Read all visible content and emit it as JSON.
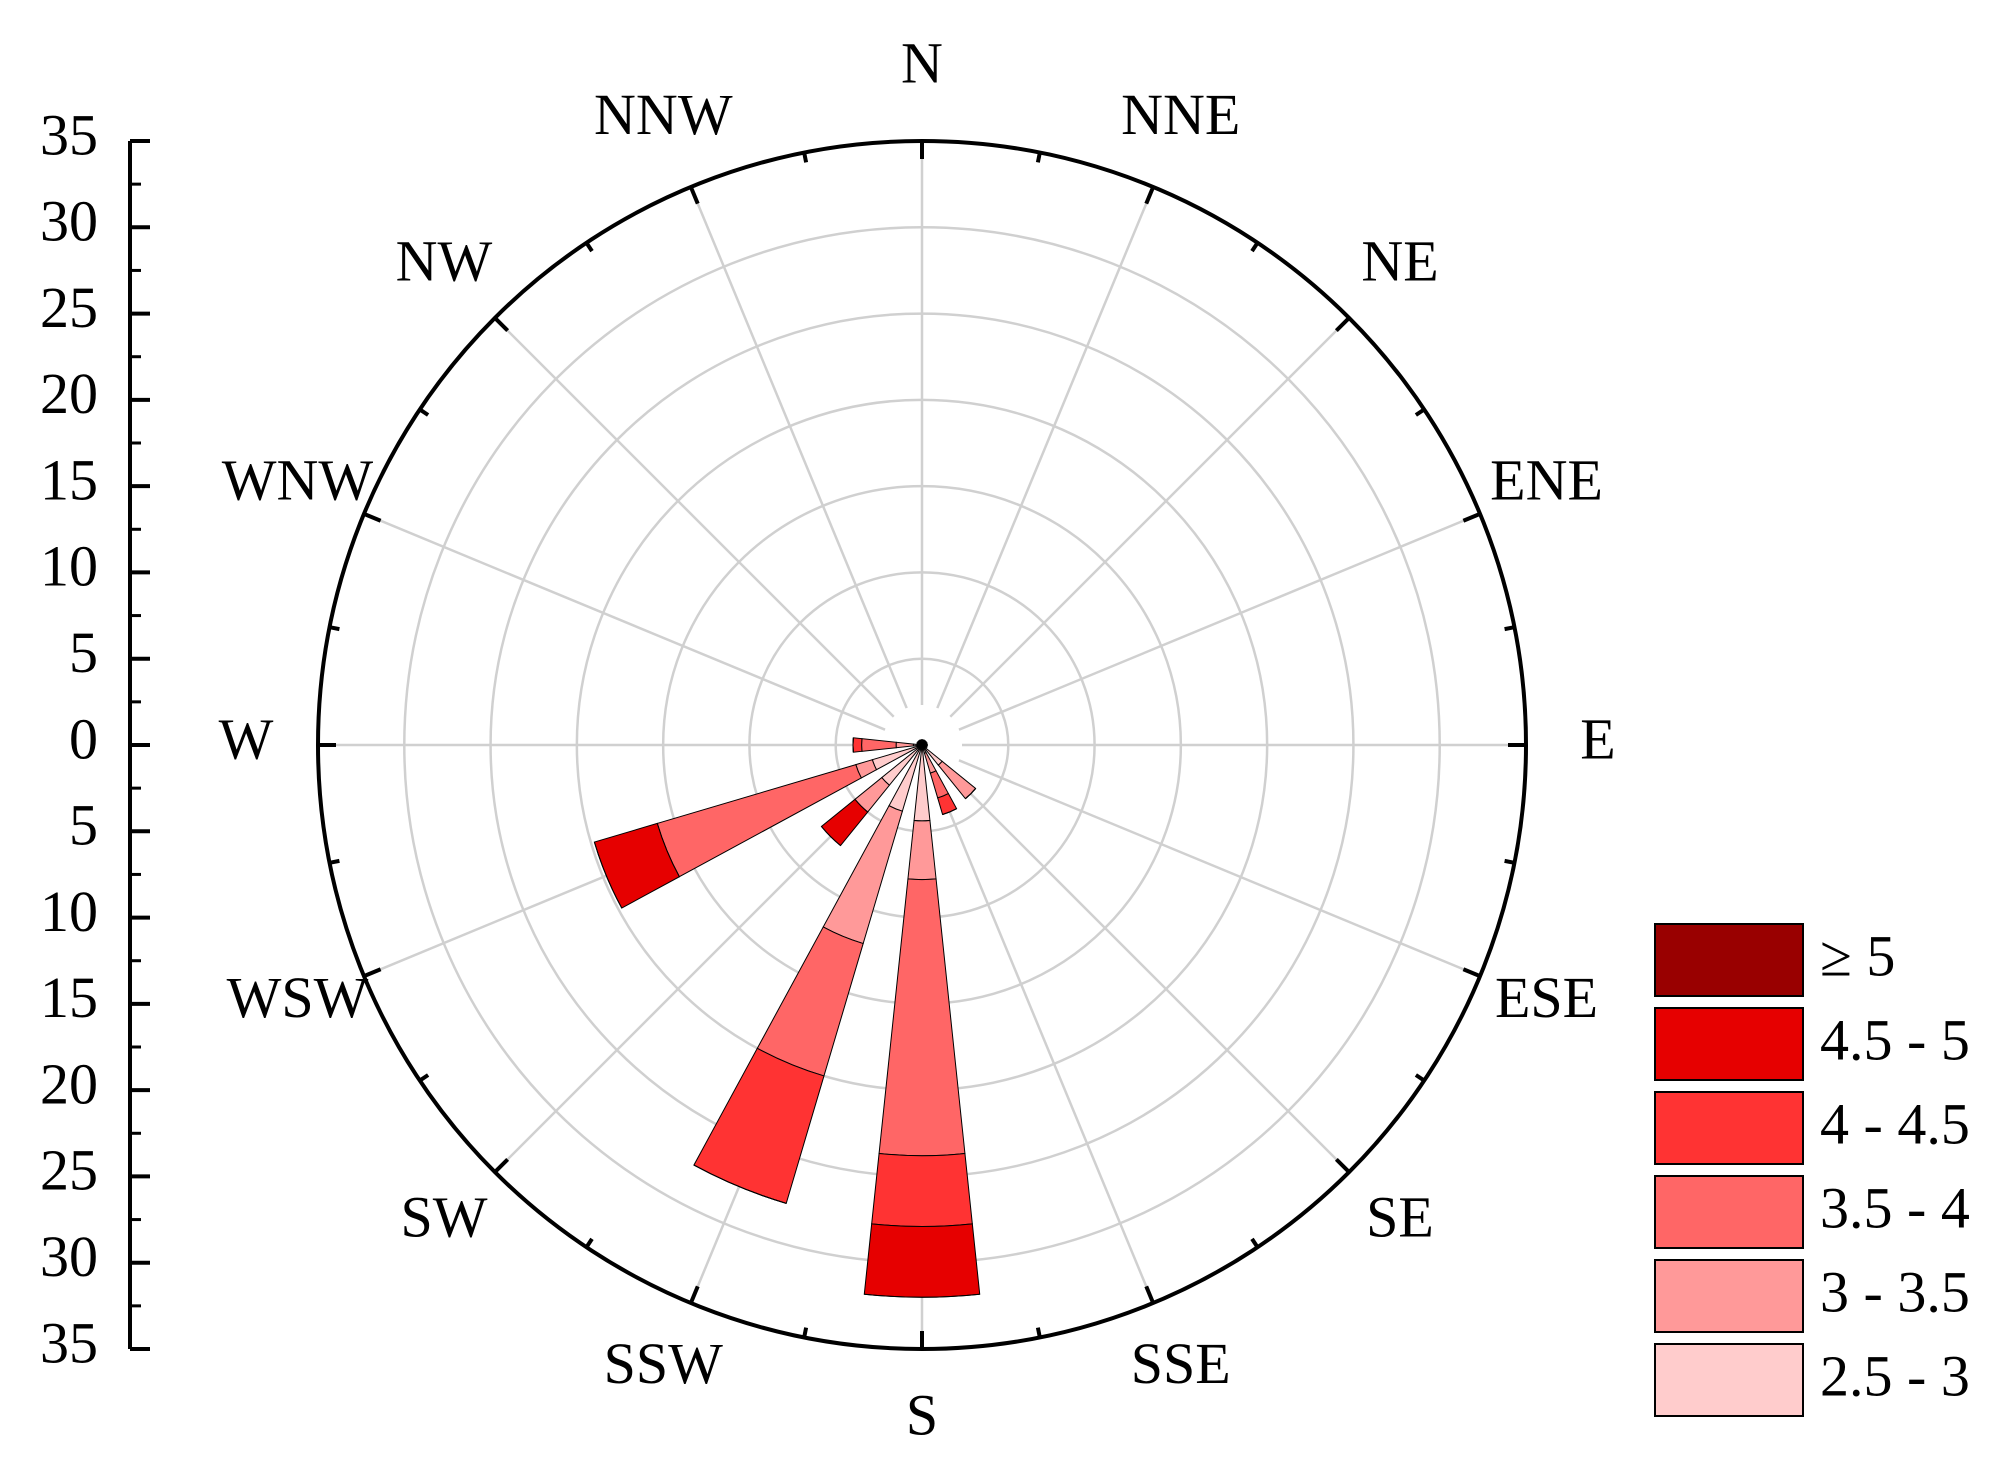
{
  "chart_data": {
    "type": "windrose",
    "directions": [
      "N",
      "NNE",
      "NE",
      "ENE",
      "E",
      "ESE",
      "SE",
      "SSE",
      "S",
      "SSW",
      "SW",
      "WSW",
      "W",
      "WNW",
      "NW",
      "NNW"
    ],
    "series": [
      {
        "name": "≥ 5",
        "color": "#990000",
        "values": [
          0,
          0,
          0,
          0,
          0,
          0,
          0,
          0,
          0,
          0,
          0,
          0,
          0,
          0,
          0,
          0
        ]
      },
      {
        "name": "4.5 - 5",
        "color": "#e60000",
        "values": [
          0,
          0,
          0,
          0,
          0,
          0,
          0,
          0,
          4.1,
          0,
          2.5,
          3.8,
          0,
          0,
          0,
          0
        ]
      },
      {
        "name": "4 - 4.5",
        "color": "#ff3333",
        "values": [
          0,
          0,
          0,
          0,
          0,
          0,
          0,
          1,
          4.1,
          7.7,
          0,
          0,
          0.5,
          0,
          0,
          0
        ]
      },
      {
        "name": "3.5 - 4",
        "color": "#ff6666",
        "values": [
          0,
          0,
          0,
          0,
          0,
          0,
          0,
          1.5,
          16,
          8,
          0,
          12,
          2,
          0,
          0,
          0
        ]
      },
      {
        "name": "3 - 3.5",
        "color": "#ff9999",
        "values": [
          0,
          0,
          0,
          0,
          0,
          0,
          2.5,
          1.2,
          3.4,
          8,
          2,
          1,
          1,
          0,
          0,
          0
        ]
      },
      {
        "name": "2.5 - 3",
        "color": "#ffcccc",
        "values": [
          0.3,
          0.3,
          0.3,
          0.3,
          0.3,
          0.3,
          1.5,
          0.5,
          4.4,
          4,
          3,
          3,
          0.5,
          0.3,
          0.3,
          0.3
        ]
      }
    ],
    "rlim": [
      0,
      35
    ],
    "rticks": [
      0,
      5,
      10,
      15,
      20,
      25,
      30,
      35
    ],
    "grid": true
  }
}
